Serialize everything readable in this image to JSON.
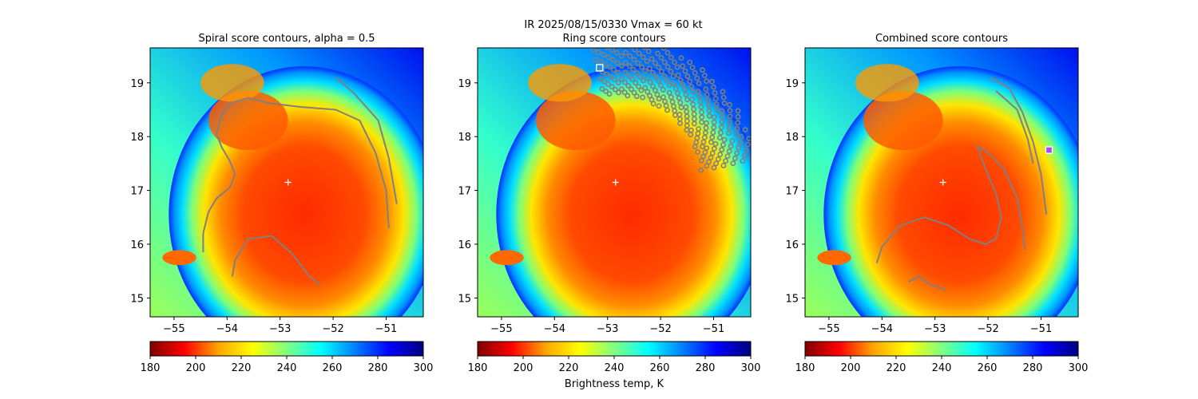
{
  "suptitle_line": "IR  2025/08/15/0330    Vmax = 60 kt",
  "colorbar_label": "Brightness temp, K",
  "colormap": [
    "#800000",
    "#ff0000",
    "#ffa500",
    "#ffff00",
    "#80ff80",
    "#00ffff",
    "#0080ff",
    "#0000ff",
    "#000080"
  ],
  "contour_color": "#808080",
  "center_marker_color": "#ffffff",
  "chart_data": [
    {
      "type": "heatmap",
      "title": "Spiral score contours, alpha =  0.5",
      "xlim": [
        -55.45,
        -50.3
      ],
      "ylim": [
        14.65,
        19.65
      ],
      "xticks": [
        -55,
        -54,
        -53,
        -52,
        -51
      ],
      "xtick_labels": [
        "−55",
        "−54",
        "−53",
        "−52",
        "−51"
      ],
      "yticks": [
        15,
        16,
        17,
        18,
        19
      ],
      "ytick_labels": [
        "15",
        "16",
        "17",
        "18",
        "19"
      ],
      "center": [
        -52.85,
        17.15
      ],
      "colorbar": {
        "range": [
          180,
          300
        ],
        "ticks": [
          180,
          200,
          220,
          240,
          260,
          280,
          300
        ],
        "tick_labels": [
          "180",
          "200",
          "220",
          "240",
          "260",
          "280",
          "300"
        ]
      },
      "contours": [
        [
          [
            -54.45,
            15.85
          ],
          [
            -54.45,
            16.2
          ],
          [
            -54.35,
            16.6
          ],
          [
            -54.2,
            16.85
          ],
          [
            -53.95,
            17.05
          ],
          [
            -53.85,
            17.3
          ],
          [
            -53.95,
            17.55
          ],
          [
            -54.1,
            17.8
          ],
          [
            -54.2,
            18.05
          ],
          [
            -54.1,
            18.4
          ],
          [
            -53.95,
            18.62
          ],
          [
            -53.6,
            18.72
          ],
          [
            -53.2,
            18.62
          ],
          [
            -52.6,
            18.55
          ],
          [
            -51.95,
            18.5
          ],
          [
            -51.5,
            18.3
          ],
          [
            -51.2,
            17.7
          ],
          [
            -51.0,
            17.0
          ],
          [
            -50.95,
            16.3
          ]
        ],
        [
          [
            -53.9,
            15.4
          ],
          [
            -53.85,
            15.7
          ],
          [
            -53.6,
            16.1
          ],
          [
            -53.15,
            16.15
          ],
          [
            -52.75,
            15.8
          ],
          [
            -52.45,
            15.4
          ],
          [
            -52.25,
            15.25
          ]
        ],
        [
          [
            -51.95,
            19.1
          ],
          [
            -51.6,
            18.8
          ],
          [
            -51.15,
            18.3
          ],
          [
            -50.95,
            17.6
          ],
          [
            -50.8,
            16.75
          ]
        ]
      ]
    },
    {
      "type": "heatmap",
      "title": "Ring score contours",
      "xlim": [
        -55.45,
        -50.3
      ],
      "ylim": [
        14.65,
        19.65
      ],
      "xticks": [
        -55,
        -54,
        -53,
        -52,
        -51
      ],
      "xtick_labels": [
        "−55",
        "−54",
        "−53",
        "−52",
        "−51"
      ],
      "yticks": [
        15,
        16,
        17,
        18,
        19
      ],
      "ytick_labels": [
        "15",
        "16",
        "17",
        "18",
        "19"
      ],
      "center": [
        -52.85,
        17.15
      ],
      "marker": [
        -53.15,
        19.28
      ],
      "ring_band": {
        "inner_radius_deg": 1.55,
        "outer_radius_deg": 2.55,
        "angle_from_deg": 8,
        "angle_to_deg": 100
      },
      "colorbar": {
        "range": [
          180,
          300
        ],
        "ticks": [
          180,
          200,
          220,
          240,
          260,
          280,
          300
        ],
        "tick_labels": [
          "180",
          "200",
          "220",
          "240",
          "260",
          "280",
          "300"
        ]
      },
      "contours": []
    },
    {
      "type": "heatmap",
      "title": "Combined score contours",
      "xlim": [
        -55.45,
        -50.3
      ],
      "ylim": [
        14.65,
        19.65
      ],
      "xticks": [
        -55,
        -54,
        -53,
        -52,
        -51
      ],
      "xtick_labels": [
        "−55",
        "−54",
        "−53",
        "−52",
        "−51"
      ],
      "yticks": [
        15,
        16,
        17,
        18,
        19
      ],
      "ytick_labels": [
        "15",
        "16",
        "17",
        "18",
        "19"
      ],
      "center": [
        -52.85,
        17.15
      ],
      "marker": [
        -50.85,
        17.75
      ],
      "colorbar": {
        "range": [
          180,
          300
        ],
        "ticks": [
          180,
          200,
          220,
          240,
          260,
          280,
          300
        ],
        "tick_labels": [
          "180",
          "200",
          "220",
          "240",
          "260",
          "280",
          "300"
        ]
      },
      "contours": [
        [
          [
            -51.95,
            19.1
          ],
          [
            -51.6,
            18.9
          ],
          [
            -51.35,
            18.45
          ],
          [
            -51.15,
            17.9
          ],
          [
            -51.0,
            17.3
          ],
          [
            -50.9,
            16.55
          ]
        ],
        [
          [
            -54.1,
            15.65
          ],
          [
            -54.0,
            15.95
          ],
          [
            -53.65,
            16.35
          ],
          [
            -53.2,
            16.5
          ],
          [
            -52.75,
            16.35
          ],
          [
            -52.35,
            16.1
          ],
          [
            -52.05,
            16.0
          ],
          [
            -51.85,
            16.1
          ],
          [
            -51.75,
            16.5
          ],
          [
            -51.85,
            16.95
          ],
          [
            -52.05,
            17.4
          ],
          [
            -52.2,
            17.82
          ],
          [
            -52.0,
            17.7
          ],
          [
            -51.7,
            17.4
          ],
          [
            -51.45,
            16.85
          ],
          [
            -51.35,
            16.3
          ],
          [
            -51.3,
            15.9
          ]
        ],
        [
          [
            -51.85,
            18.85
          ],
          [
            -51.45,
            18.5
          ],
          [
            -51.25,
            17.95
          ],
          [
            -51.15,
            17.5
          ]
        ],
        [
          [
            -53.5,
            15.3
          ],
          [
            -53.3,
            15.4
          ],
          [
            -53.1,
            15.25
          ],
          [
            -52.8,
            15.15
          ]
        ]
      ]
    }
  ]
}
